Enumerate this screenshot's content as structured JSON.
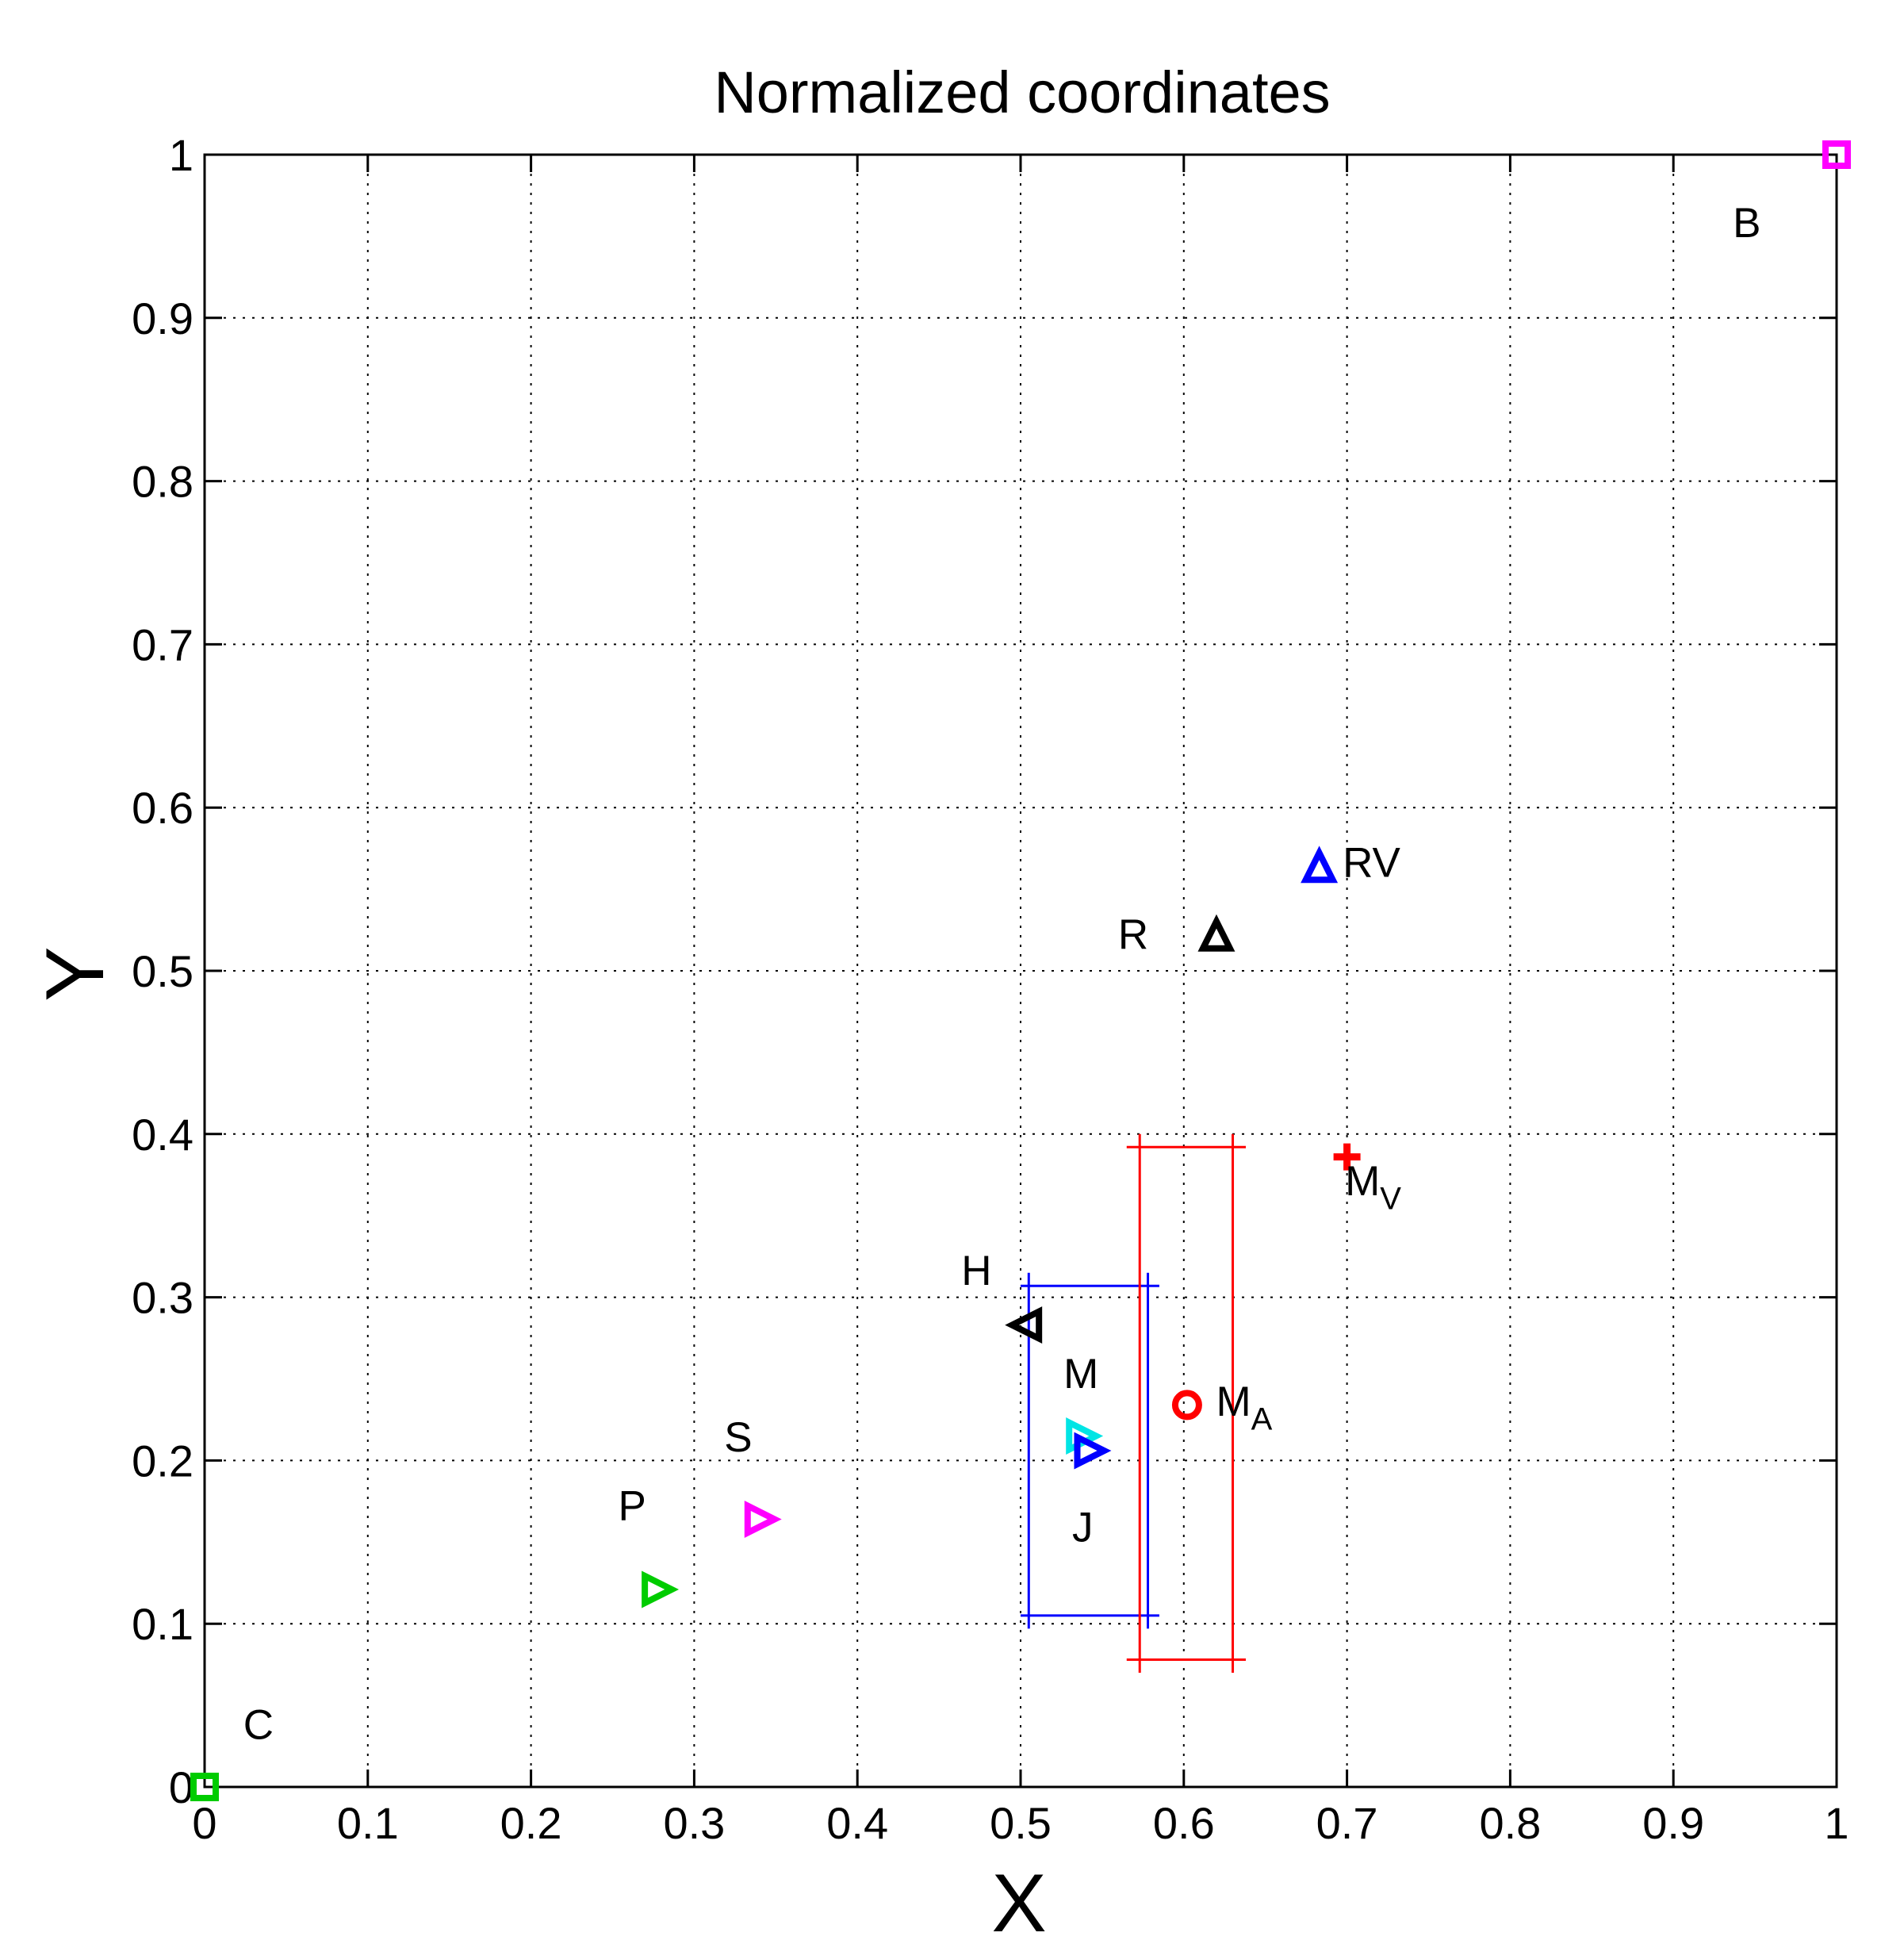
{
  "chart_data": {
    "type": "scatter",
    "title": "Normalized coordinates",
    "xlabel": "X",
    "ylabel": "Y",
    "xlim": [
      0,
      1
    ],
    "ylim": [
      0,
      1
    ],
    "grid": true,
    "xticks": [
      "0",
      "0.1",
      "0.2",
      "0.3",
      "0.4",
      "0.5",
      "0.6",
      "0.7",
      "0.8",
      "0.9",
      "1"
    ],
    "yticks": [
      "0",
      "0.1",
      "0.2",
      "0.3",
      "0.4",
      "0.5",
      "0.6",
      "0.7",
      "0.8",
      "0.9",
      "1"
    ],
    "points": [
      {
        "label": "C",
        "sub": "",
        "x": 0.0,
        "y": 0.0,
        "marker": "square",
        "color": "#00cc00",
        "label_x": 0.033,
        "label_y": 0.038
      },
      {
        "label": "B",
        "sub": "",
        "x": 1.0,
        "y": 1.0,
        "marker": "square",
        "color": "#ff00ff",
        "label_x": 0.945,
        "label_y": 0.958
      },
      {
        "label": "P",
        "sub": "",
        "x": 0.278,
        "y": 0.121,
        "marker": "triangle-right",
        "color": "#00cc00",
        "label_x": 0.262,
        "label_y": 0.172
      },
      {
        "label": "S",
        "sub": "",
        "x": 0.341,
        "y": 0.164,
        "marker": "triangle-right",
        "color": "#ff00ff",
        "label_x": 0.327,
        "label_y": 0.214
      },
      {
        "label": "H",
        "sub": "",
        "x": 0.503,
        "y": 0.283,
        "marker": "triangle-left",
        "color": "#000000",
        "label_x": 0.473,
        "label_y": 0.316
      },
      {
        "label": "M",
        "sub": "",
        "x": 0.538,
        "y": 0.215,
        "marker": "triangle-right",
        "color": "#00e5e5",
        "label_x": 0.537,
        "label_y": 0.253
      },
      {
        "label": "J",
        "sub": "",
        "x": 0.543,
        "y": 0.206,
        "marker": "triangle-right",
        "color": "#0000ff",
        "label_x": 0.538,
        "label_y": 0.159
      },
      {
        "label": "M",
        "sub": "A",
        "x": 0.602,
        "y": 0.234,
        "marker": "circle",
        "color": "#ff0000",
        "label_x": 0.637,
        "label_y": 0.236
      },
      {
        "label": "M",
        "sub": "V",
        "x": 0.7,
        "y": 0.386,
        "marker": "plus",
        "color": "#ff0000",
        "label_x": 0.716,
        "label_y": 0.371
      },
      {
        "label": "R",
        "sub": "",
        "x": 0.62,
        "y": 0.522,
        "marker": "triangle-up",
        "color": "#000000",
        "label_x": 0.569,
        "label_y": 0.522
      },
      {
        "label": "RV",
        "sub": "",
        "x": 0.683,
        "y": 0.564,
        "marker": "triangle-up",
        "color": "#0000ff",
        "label_x": 0.715,
        "label_y": 0.566
      }
    ],
    "ranges": [
      {
        "name": "M-range",
        "color": "#0000ff",
        "x_left": 0.505,
        "x_right": 0.578,
        "y_low": 0.105,
        "y_high": 0.307,
        "cap_left": 0.5,
        "cap_right": 0.585,
        "cap_y_extend": 0.008
      },
      {
        "name": "MA-range",
        "color": "#ff0000",
        "x_left": 0.573,
        "x_right": 0.63,
        "y_low": 0.078,
        "y_high": 0.392,
        "cap_left": 0.565,
        "cap_right": 0.638,
        "cap_y_extend": 0.008
      }
    ]
  }
}
